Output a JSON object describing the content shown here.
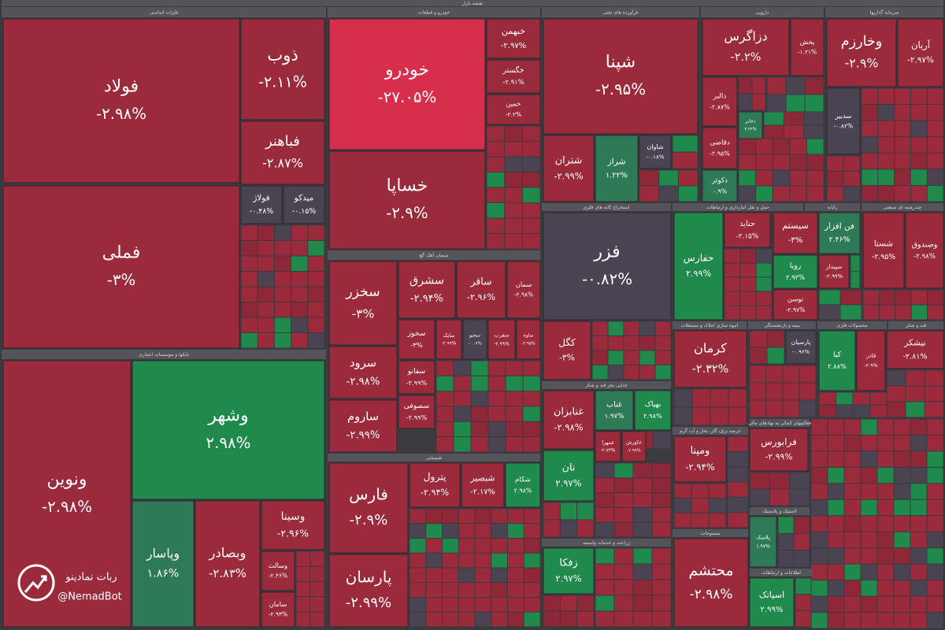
{
  "title": "نقشه بازار",
  "watermark": {
    "name": "ربات نمادینو",
    "handle": "@NemadBot"
  },
  "sectors": [
    {
      "name": "فلزات اساسی",
      "tiles": [
        {
          "name": "فولاد",
          "change": -2.98,
          "change_label": "-۲.۹۸%"
        },
        {
          "name": "ذوب",
          "change": -2.11,
          "change_label": "-۲.۱۱%"
        },
        {
          "name": "فباهنر",
          "change": -2.87,
          "change_label": "-۲.۸۷%"
        },
        {
          "name": "فولاژ",
          "change": -0.48,
          "change_label": "-۰.۴۸%"
        },
        {
          "name": "میدکو",
          "change": -0.15,
          "change_label": "-۰.۱۵%"
        },
        {
          "name": "فملی",
          "change": -3,
          "change_label": "-۳%"
        }
      ]
    },
    {
      "name": "بانکها و موسسات اعتباری",
      "tiles": [
        {
          "name": "ونوین",
          "change": -2.98,
          "change_label": "-۲.۹۸%"
        },
        {
          "name": "وشهر",
          "change": 2.98,
          "change_label": "۲.۹۸%"
        },
        {
          "name": "وپاسار",
          "change": 1.86,
          "change_label": "۱.۸۶%"
        },
        {
          "name": "وبصادر",
          "change": -2.83,
          "change_label": "-۲.۸۳%"
        },
        {
          "name": "وسینا",
          "change": -2.96,
          "change_label": "-۲.۹۶%"
        },
        {
          "name": "وسالت",
          "change": -2.46,
          "change_label": "-۲.۴۶%"
        },
        {
          "name": "سامان",
          "change": -2.93,
          "change_label": "-۲.۹۳%"
        }
      ]
    },
    {
      "name": "خودرو و قطعات",
      "tiles": [
        {
          "name": "خودرو",
          "change": -27.05,
          "change_label": "-۲۷.۰۵%"
        },
        {
          "name": "خساپا",
          "change": -2.9,
          "change_label": "-۲.۹%"
        },
        {
          "name": "خبهمن",
          "change": -2.97,
          "change_label": "-۲.۹۷%"
        },
        {
          "name": "خگستر",
          "change": -2.91,
          "change_label": "-۲.۹۱%"
        },
        {
          "name": "خمین",
          "change": -2.2,
          "change_label": "-۲.۲%"
        }
      ]
    },
    {
      "name": "سیمان آهک گچ",
      "tiles": [
        {
          "name": "سخزر",
          "change": -3,
          "change_label": "-۳%"
        },
        {
          "name": "سشرق",
          "change": -2.94,
          "change_label": "-۲.۹۴%"
        },
        {
          "name": "ساقر",
          "change": -2.96,
          "change_label": "-۲.۹۶%"
        },
        {
          "name": "سمان",
          "change": -2.98,
          "change_label": "-۲.۹۸%"
        },
        {
          "name": "سرود",
          "change": -2.98,
          "change_label": "-۲.۹۸%"
        },
        {
          "name": "ساروم",
          "change": -2.99,
          "change_label": "-۲.۹۹%"
        },
        {
          "name": "سخوز",
          "change": -3,
          "change_label": "-۳%"
        },
        {
          "name": "سفانو",
          "change": -2.99,
          "change_label": "-۲.۹۹%"
        },
        {
          "name": "سصوفی",
          "change": -2.99,
          "change_label": "-۲.۹۹%"
        },
        {
          "name": "سایک",
          "change": -2.99,
          "change_label": "-۲.۹۹%"
        },
        {
          "name": "سجنو",
          "change": -0.07,
          "change_label": "-۰.۰۷%"
        },
        {
          "name": "سفرب",
          "change": -2.99,
          "change_label": "-۲.۹۹%"
        },
        {
          "name": "ساوه",
          "change": -2.95,
          "change_label": "-۲.۹۵%"
        }
      ]
    },
    {
      "name": "شیمیایی",
      "tiles": [
        {
          "name": "فارس",
          "change": -2.9,
          "change_label": "-۲.۹%"
        },
        {
          "name": "پارسان",
          "change": -2.99,
          "change_label": "-۲.۹۹%"
        },
        {
          "name": "پترول",
          "change": -2.94,
          "change_label": "-۲.۹۴%"
        },
        {
          "name": "شبصیر",
          "change": -2.17,
          "change_label": "-۲.۱۷%"
        },
        {
          "name": "شکام",
          "change": 2.98,
          "change_label": "۲.۹۸%"
        }
      ]
    },
    {
      "name": "فرآورده های نفتی",
      "tiles": [
        {
          "name": "شپنا",
          "change": -2.95,
          "change_label": "-۲.۹۵%"
        },
        {
          "name": "شتران",
          "change": -2.99,
          "change_label": "-۲.۹۹%"
        },
        {
          "name": "شراز",
          "change": 1.22,
          "change_label": "۱.۲۲%"
        },
        {
          "name": "شاوان",
          "change": -0.18,
          "change_label": "-۰.۱۸%"
        }
      ]
    },
    {
      "name": "دارویی",
      "tiles": [
        {
          "name": "دزاگرس",
          "change": -2.2,
          "change_label": "-۲.۲%"
        },
        {
          "name": "پخش",
          "change": -1.21,
          "change_label": "-۱.۲۱%"
        },
        {
          "name": "دالبر",
          "change": -2.87,
          "change_label": "-۲.۸۷%"
        },
        {
          "name": "دقاضی",
          "change": -2.95,
          "change_label": "-۲.۹۵%"
        },
        {
          "name": "دکوثر",
          "change": 0.9,
          "change_label": "۰.۹%"
        },
        {
          "name": "دجابر",
          "change": 2.22,
          "change_label": "۲.۲۲%"
        }
      ]
    },
    {
      "name": "سرمایه گذاریها",
      "tiles": [
        {
          "name": "وخارزم",
          "change": -2.9,
          "change_label": "-۲.۹%"
        },
        {
          "name": "آریان",
          "change": -2.97,
          "change_label": "-۲.۹۷%"
        },
        {
          "name": "سدبیر",
          "change": -0.82,
          "change_label": "-۰.۸۲%"
        }
      ]
    },
    {
      "name": "استخراج کانه های فلزی",
      "tiles": [
        {
          "name": "فزر",
          "change": -0.82,
          "change_label": "-۰.۸۲%"
        },
        {
          "name": "کگل",
          "change": -3,
          "change_label": "-۳%"
        }
      ]
    },
    {
      "name": "غذایی بجز قند و شکر",
      "tiles": [
        {
          "name": "غنابزان",
          "change": -2.98,
          "change_label": "-۲.۹۸%"
        },
        {
          "name": "غناب",
          "change": 1.97,
          "change_label": "۱.۹۷%"
        },
        {
          "name": "بهپاک",
          "change": 2.98,
          "change_label": "۲.۹۸%"
        },
        {
          "name": "غمهرا",
          "change": -2.73,
          "change_label": "-۲.۷۳%"
        },
        {
          "name": "غکورش",
          "change": -2.99,
          "change_label": "-۲.۹۹%"
        },
        {
          "name": "نان",
          "change": 2.97,
          "change_label": "۲.۹۷%"
        }
      ]
    },
    {
      "name": "زراعت و خدمات وابسته",
      "tiles": [
        {
          "name": "زفکا",
          "change": 2.97,
          "change_label": "۲.۹۷%"
        }
      ]
    },
    {
      "name": "حمل و نقل انبارداری و ارتباطات",
      "tiles": [
        {
          "name": "حفارس",
          "change": 2.99,
          "change_label": "۲.۹۹%"
        },
        {
          "name": "حتاید",
          "change": -2.15,
          "change_label": "-۲.۱۵%"
        }
      ]
    },
    {
      "name": "رایانه",
      "tiles": [
        {
          "name": "سیستم",
          "change": -3,
          "change_label": "-۳%"
        },
        {
          "name": "فن افزار",
          "change": 2.46,
          "change_label": "۲.۴۶%"
        },
        {
          "name": "رویا",
          "change": 2.93,
          "change_label": "۲.۹۳%"
        },
        {
          "name": "سپیدار",
          "change": -2.99,
          "change_label": "-۲.۹۹%"
        },
        {
          "name": "توسن",
          "change": -2.97,
          "change_label": "-۲.۹۷%"
        }
      ]
    },
    {
      "name": "چندرشته ای صنعتی",
      "tiles": [
        {
          "name": "شستا",
          "change": -2.95,
          "change_label": "-۲.۹۵%"
        },
        {
          "name": "وصندوق",
          "change": -2.98,
          "change_label": "-۲.۹۸%"
        }
      ]
    },
    {
      "name": "انبوه سازی املاک و مستغلات",
      "tiles": [
        {
          "name": "کرمان",
          "change": -2.32,
          "change_label": "-۲.۳۲%"
        }
      ]
    },
    {
      "name": "بیمه و بازنشستگی",
      "tiles": [
        {
          "name": "پارسیان",
          "change": -0.96,
          "change_label": "-۰.۹۶%"
        }
      ]
    },
    {
      "name": "محصولات فلزی",
      "tiles": [
        {
          "name": "کیا",
          "change": 2.88,
          "change_label": "۲.۸۸%"
        },
        {
          "name": "قادر",
          "change": -2.9,
          "change_label": "-۲.۹%"
        }
      ]
    },
    {
      "name": "قند و شکر",
      "tiles": [
        {
          "name": "نیشکر",
          "change": -2.81,
          "change_label": "-۲.۸۱%"
        }
      ]
    },
    {
      "name": "عرضه برق، گاز، بخار و آب گرم",
      "tiles": [
        {
          "name": "ومپنا",
          "change": -2.94,
          "change_label": "-۲.۹۴%"
        }
      ]
    },
    {
      "name": "لاستیک و پلاستیک",
      "tiles": [
        {
          "name": "پلاسک",
          "change": 1.97,
          "change_label": "۱.۹۷%"
        }
      ]
    },
    {
      "name": "فعالیتهای کمکی به نهادهای مالی",
      "tiles": [
        {
          "name": "فرابورس",
          "change": -2.99,
          "change_label": "-۲.۹۹%"
        }
      ]
    },
    {
      "name": "منسوجات",
      "tiles": [
        {
          "name": "محتشم",
          "change": -2.98,
          "change_label": "-۲.۹۸%"
        }
      ]
    },
    {
      "name": "اطلاعات و ارتباطات",
      "tiles": [
        {
          "name": "اسیاتک",
          "change": 2.99,
          "change_label": "۲.۹۹%"
        }
      ]
    }
  ]
}
